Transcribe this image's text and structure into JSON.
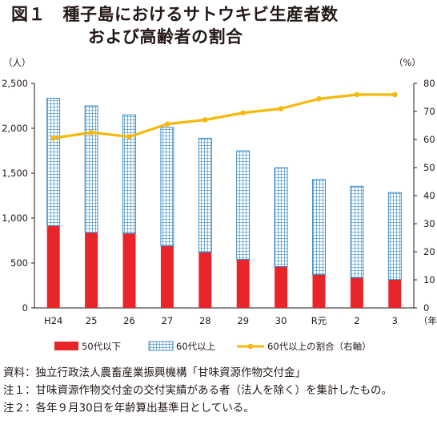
{
  "title": {
    "line1": "図１　種子島におけるサトウキビ生産者数",
    "line2": "および高齢者の割合"
  },
  "chart_data": {
    "type": "bar",
    "categories": [
      "H24",
      "25",
      "26",
      "27",
      "28",
      "29",
      "30",
      "R元",
      "2",
      "3"
    ],
    "x_unit": "（年）",
    "left_axis": {
      "unit": "（人）",
      "ylim": [
        0,
        2500
      ],
      "ticks": [
        "0",
        "500",
        "1,000",
        "1,500",
        "2,000",
        "2,500"
      ]
    },
    "right_axis": {
      "unit": "（%）",
      "ylim": [
        0,
        80
      ],
      "ticks": [
        "0",
        "10",
        "20",
        "30",
        "40",
        "50",
        "60",
        "70",
        "80"
      ]
    },
    "series": [
      {
        "name": "50代以下",
        "type": "bar",
        "stacked": true,
        "axis": "left",
        "color": "#e8262a",
        "values": [
          915,
          840,
          830,
          690,
          620,
          540,
          460,
          370,
          335,
          315
        ]
      },
      {
        "name": "60代以上",
        "type": "bar",
        "stacked": true,
        "axis": "left",
        "pattern": "grid",
        "color": "#1b78c1",
        "values": [
          1420,
          1410,
          1320,
          1320,
          1270,
          1210,
          1100,
          1060,
          1020,
          970
        ]
      },
      {
        "name": "60代以上の割合（右軸）",
        "type": "line",
        "axis": "right",
        "color": "#f5b90d",
        "values": [
          60.5,
          62.5,
          61,
          65.5,
          67,
          69.5,
          71,
          74.5,
          76,
          76
        ]
      }
    ],
    "grid": false,
    "legend": "bottom"
  },
  "notes": [
    {
      "label": "資料：",
      "text": "独立行政法人農畜産業振興機構「甘味資源作物交付金」"
    },
    {
      "label": "注１：",
      "text": "甘味資源作物交付金の交付実績がある者（法人を除く）を集計したもの。"
    },
    {
      "label": "注２：",
      "text": "各年９月30日を年齢算出基準日としている。"
    }
  ]
}
